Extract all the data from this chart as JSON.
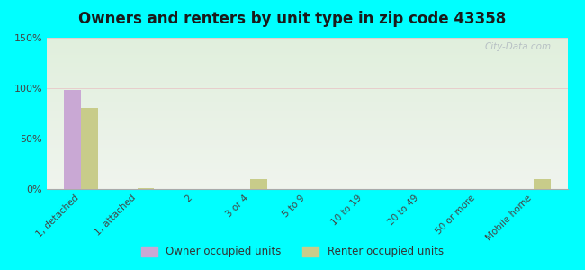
{
  "title": "Owners and renters by unit type in zip code 43358",
  "categories": [
    "1, detached",
    "1, attached",
    "2",
    "3 or 4",
    "5 to 9",
    "10 to 19",
    "20 to 49",
    "50 or more",
    "Mobile home"
  ],
  "owner_values": [
    98,
    0,
    0,
    0,
    0,
    0,
    0,
    0,
    0
  ],
  "renter_values": [
    80,
    1,
    0,
    10,
    0,
    0,
    0,
    0,
    10
  ],
  "owner_color": "#c9a8d4",
  "renter_color": "#c8cc8a",
  "bg_color": "#00ffff",
  "ylim": [
    0,
    150
  ],
  "yticks": [
    0,
    50,
    100,
    150
  ],
  "ytick_labels": [
    "0%",
    "50%",
    "100%",
    "150%"
  ],
  "watermark": "City-Data.com",
  "legend_owner": "Owner occupied units",
  "legend_renter": "Renter occupied units",
  "bar_width": 0.3,
  "title_fontsize": 12
}
